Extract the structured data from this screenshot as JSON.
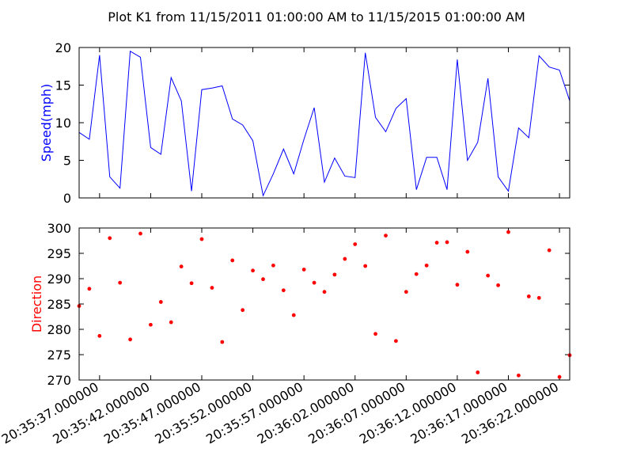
{
  "title": "Plot K1 from 11/15/2011 01:00:00 AM to 11/15/2015 01:00:00 AM",
  "chart_data": [
    {
      "type": "line",
      "name": "speed",
      "ylabel": "Speed(mph)",
      "color": "#0000ff",
      "ylim": [
        0,
        20
      ],
      "yticks": [
        "0",
        "5",
        "10",
        "15",
        "20"
      ],
      "xlim": [
        0,
        48
      ],
      "x": [
        0,
        1,
        2,
        3,
        4,
        5,
        6,
        7,
        8,
        9,
        10,
        11,
        12,
        13,
        14,
        15,
        16,
        17,
        18,
        19,
        20,
        21,
        22,
        23,
        24,
        25,
        26,
        27,
        28,
        29,
        30,
        31,
        32,
        33,
        34,
        35,
        36,
        37,
        38,
        39,
        40,
        41,
        42,
        43,
        44,
        45,
        46,
        47,
        48
      ],
      "values": [
        8.7,
        7.8,
        19.0,
        2.8,
        1.3,
        19.5,
        18.7,
        6.7,
        5.8,
        16.0,
        12.9,
        0.9,
        14.4,
        14.6,
        14.9,
        10.5,
        9.7,
        7.6,
        0.3,
        3.2,
        6.5,
        3.2,
        7.8,
        12.0,
        2.1,
        5.3,
        2.9,
        2.7,
        19.3,
        10.7,
        8.8,
        11.9,
        13.2,
        1.1,
        5.4,
        5.4,
        1.1,
        18.4,
        5.0,
        7.4,
        15.9,
        2.8,
        0.9,
        9.3,
        8.0,
        18.9,
        17.4,
        17.0,
        12.9
      ]
    },
    {
      "type": "scatter",
      "name": "direction",
      "ylabel": "Direction",
      "color": "#ff0000",
      "ylim": [
        270,
        300
      ],
      "yticks": [
        "270",
        "275",
        "280",
        "285",
        "290",
        "295",
        "300"
      ],
      "xlim": [
        0,
        48
      ],
      "x": [
        0,
        1,
        2,
        3,
        4,
        5,
        6,
        7,
        8,
        9,
        10,
        11,
        12,
        13,
        14,
        15,
        16,
        17,
        18,
        19,
        20,
        21,
        22,
        23,
        24,
        25,
        26,
        27,
        28,
        29,
        30,
        31,
        32,
        33,
        34,
        35,
        36,
        37,
        38,
        39,
        40,
        41,
        42,
        43,
        44,
        45,
        46,
        47,
        48
      ],
      "values": [
        284.6,
        288.0,
        278.7,
        298.0,
        289.2,
        278.0,
        298.9,
        280.9,
        285.4,
        281.4,
        292.4,
        289.1,
        297.8,
        288.2,
        277.5,
        293.6,
        283.8,
        291.6,
        289.9,
        292.6,
        287.7,
        282.8,
        291.8,
        289.2,
        287.4,
        290.8,
        293.9,
        296.8,
        292.5,
        279.1,
        298.5,
        277.7,
        287.4,
        290.9,
        292.6,
        297.1,
        297.2,
        288.8,
        295.3,
        271.5,
        290.6,
        288.7,
        299.2,
        270.9,
        286.5,
        286.2,
        295.6,
        270.6,
        274.9
      ]
    }
  ],
  "x_ticks": {
    "labels": [
      "20:35:37.000000",
      "20:35:42.000000",
      "20:35:47.000000",
      "20:35:52.000000",
      "20:35:57.000000",
      "20:36:02.000000",
      "20:36:07.000000",
      "20:36:12.000000",
      "20:36:17.000000",
      "20:36:22.000000"
    ],
    "positions": [
      2,
      7,
      12,
      17,
      22,
      27,
      32,
      37,
      42,
      47
    ]
  }
}
